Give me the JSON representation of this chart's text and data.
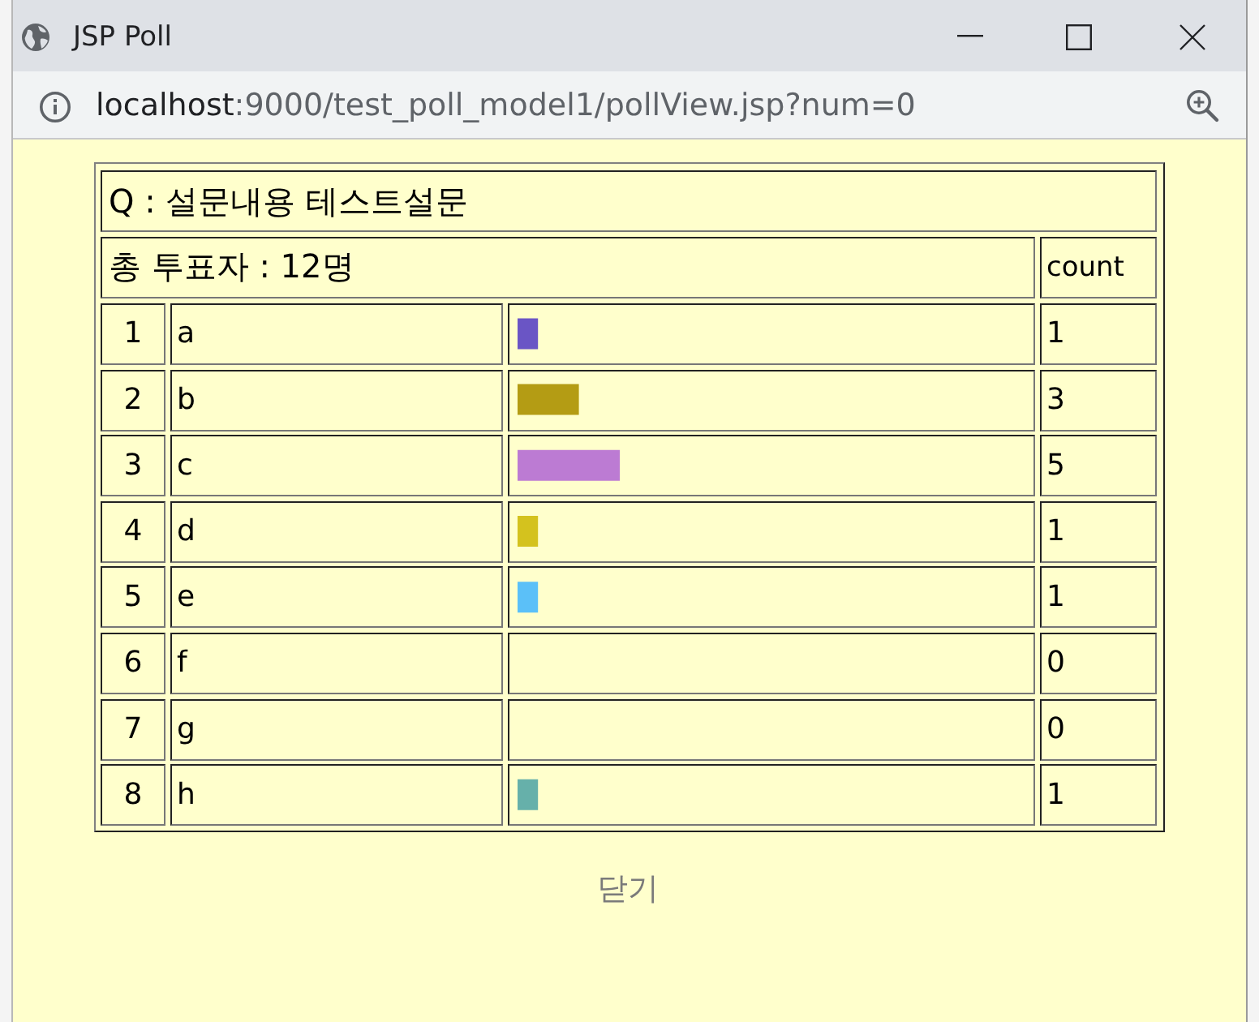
{
  "chart_data": {
    "type": "bar",
    "orientation": "horizontal",
    "title": "Q : 설문내용 테스트설문",
    "subtitle": "총 투표자 : 12명",
    "categories": [
      "a",
      "b",
      "c",
      "d",
      "e",
      "f",
      "g",
      "h"
    ],
    "values": [
      1,
      3,
      5,
      1,
      1,
      0,
      0,
      1
    ],
    "colors": [
      "#6a55c5",
      "#b49c14",
      "#bc7bd3",
      "#d4c21e",
      "#5bc0f8",
      "#22ee44",
      "#80c080",
      "#66b0aa"
    ],
    "data_labels": true,
    "tick_labels": "y",
    "grid": false,
    "annotations": [
      "JSP Poll",
      "localhost:9000/test_poll_model1/pollView.jsp?num=0",
      "count",
      "1",
      "2",
      "3",
      "4",
      "5",
      "6",
      "7",
      "8",
      "닫기"
    ]
  }
}
